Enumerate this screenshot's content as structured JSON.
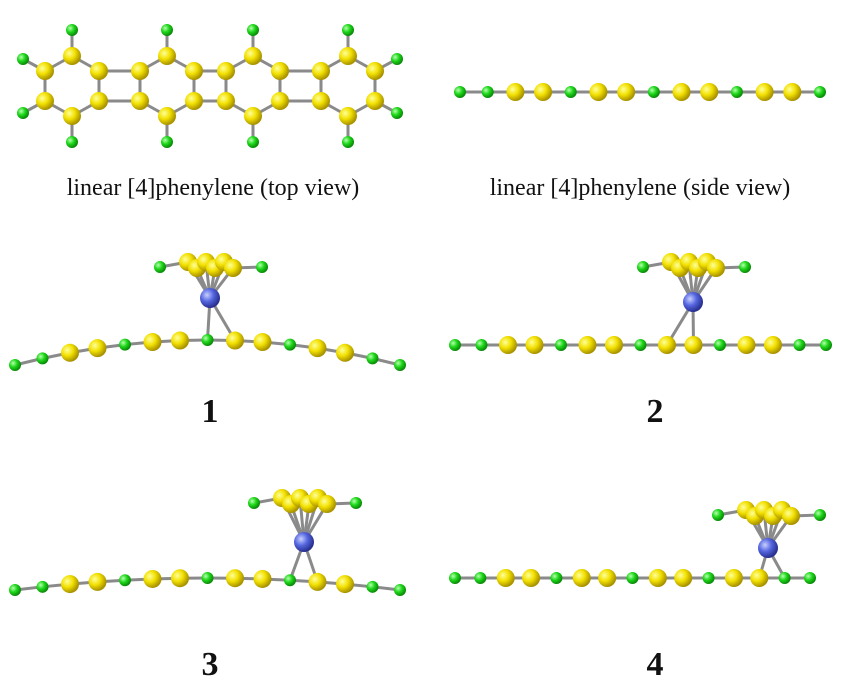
{
  "captions": [
    "linear [4]phenylene (top view)",
    "linear [4]phenylene (side view)"
  ],
  "labels": [
    "1",
    "2",
    "3",
    "4"
  ]
}
